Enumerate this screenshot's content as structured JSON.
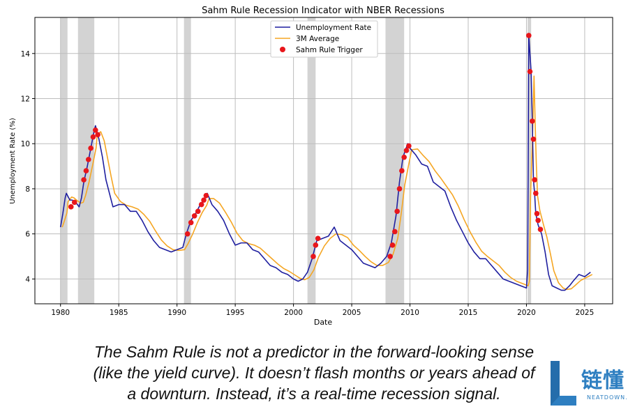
{
  "chart_data": {
    "type": "line",
    "title": "Sahm Rule Recession Indicator with NBER Recessions",
    "xlabel": "Date",
    "ylabel": "Unemployment Rate (%)",
    "xlim": [
      1977.8,
      2027.4
    ],
    "ylim": [
      2.9,
      15.6
    ],
    "x_ticks": [
      1980,
      1985,
      1990,
      1995,
      2000,
      2005,
      2010,
      2015,
      2020,
      2025
    ],
    "y_ticks": [
      4,
      6,
      8,
      10,
      12,
      14
    ],
    "grid": true,
    "legend_position": "top-center",
    "recessions": [
      [
        1980.0,
        1980.6
      ],
      [
        1981.5,
        1982.9
      ],
      [
        1990.6,
        1991.2
      ],
      [
        2001.2,
        2001.9
      ],
      [
        2007.9,
        2009.5
      ],
      [
        2020.1,
        2020.4
      ]
    ],
    "series": [
      {
        "name": "Unemployment Rate",
        "color": "#1f1f9f",
        "points": [
          [
            1980.0,
            6.3
          ],
          [
            1980.2,
            6.9
          ],
          [
            1980.4,
            7.6
          ],
          [
            1980.5,
            7.8
          ],
          [
            1980.8,
            7.5
          ],
          [
            1981.0,
            7.5
          ],
          [
            1981.3,
            7.4
          ],
          [
            1981.6,
            7.2
          ],
          [
            1981.8,
            7.6
          ],
          [
            1982.0,
            8.3
          ],
          [
            1982.3,
            9.0
          ],
          [
            1982.6,
            9.8
          ],
          [
            1982.9,
            10.6
          ],
          [
            1983.0,
            10.8
          ],
          [
            1983.3,
            10.2
          ],
          [
            1983.6,
            9.4
          ],
          [
            1983.9,
            8.4
          ],
          [
            1984.2,
            7.8
          ],
          [
            1984.5,
            7.2
          ],
          [
            1985.0,
            7.3
          ],
          [
            1985.5,
            7.3
          ],
          [
            1986.0,
            7.0
          ],
          [
            1986.5,
            7.0
          ],
          [
            1987.0,
            6.6
          ],
          [
            1987.5,
            6.1
          ],
          [
            1988.0,
            5.7
          ],
          [
            1988.5,
            5.4
          ],
          [
            1989.0,
            5.3
          ],
          [
            1989.5,
            5.2
          ],
          [
            1990.0,
            5.3
          ],
          [
            1990.5,
            5.4
          ],
          [
            1990.8,
            6.0
          ],
          [
            1991.2,
            6.6
          ],
          [
            1991.6,
            6.9
          ],
          [
            1992.0,
            7.3
          ],
          [
            1992.4,
            7.6
          ],
          [
            1992.6,
            7.8
          ],
          [
            1993.0,
            7.3
          ],
          [
            1993.5,
            7.0
          ],
          [
            1994.0,
            6.6
          ],
          [
            1994.5,
            6.0
          ],
          [
            1995.0,
            5.5
          ],
          [
            1995.5,
            5.6
          ],
          [
            1996.0,
            5.6
          ],
          [
            1996.5,
            5.3
          ],
          [
            1997.0,
            5.2
          ],
          [
            1997.5,
            4.9
          ],
          [
            1998.0,
            4.6
          ],
          [
            1998.5,
            4.5
          ],
          [
            1999.0,
            4.3
          ],
          [
            1999.5,
            4.2
          ],
          [
            2000.0,
            4.0
          ],
          [
            2000.4,
            3.9
          ],
          [
            2000.8,
            4.0
          ],
          [
            2001.2,
            4.3
          ],
          [
            2001.6,
            4.9
          ],
          [
            2002.0,
            5.7
          ],
          [
            2002.5,
            5.8
          ],
          [
            2003.0,
            5.9
          ],
          [
            2003.5,
            6.3
          ],
          [
            2004.0,
            5.7
          ],
          [
            2004.5,
            5.5
          ],
          [
            2005.0,
            5.3
          ],
          [
            2005.5,
            5.0
          ],
          [
            2006.0,
            4.7
          ],
          [
            2006.5,
            4.6
          ],
          [
            2007.0,
            4.5
          ],
          [
            2007.5,
            4.7
          ],
          [
            2008.0,
            5.0
          ],
          [
            2008.4,
            5.6
          ],
          [
            2008.8,
            6.8
          ],
          [
            2009.1,
            8.3
          ],
          [
            2009.4,
            9.4
          ],
          [
            2009.8,
            10.0
          ],
          [
            2010.0,
            9.8
          ],
          [
            2010.5,
            9.5
          ],
          [
            2011.0,
            9.1
          ],
          [
            2011.5,
            9.0
          ],
          [
            2012.0,
            8.3
          ],
          [
            2012.5,
            8.1
          ],
          [
            2013.0,
            7.9
          ],
          [
            2013.5,
            7.2
          ],
          [
            2014.0,
            6.6
          ],
          [
            2014.5,
            6.1
          ],
          [
            2015.0,
            5.6
          ],
          [
            2015.5,
            5.2
          ],
          [
            2016.0,
            4.9
          ],
          [
            2016.5,
            4.9
          ],
          [
            2017.0,
            4.6
          ],
          [
            2017.5,
            4.3
          ],
          [
            2018.0,
            4.0
          ],
          [
            2018.5,
            3.9
          ],
          [
            2019.0,
            3.8
          ],
          [
            2019.5,
            3.7
          ],
          [
            2020.0,
            3.6
          ],
          [
            2020.1,
            4.4
          ],
          [
            2020.2,
            14.8
          ],
          [
            2020.4,
            13.2
          ],
          [
            2020.5,
            11.0
          ],
          [
            2020.6,
            8.4
          ],
          [
            2020.7,
            7.8
          ],
          [
            2020.8,
            6.9
          ],
          [
            2021.0,
            6.4
          ],
          [
            2021.3,
            6.0
          ],
          [
            2021.6,
            5.2
          ],
          [
            2021.9,
            4.2
          ],
          [
            2022.2,
            3.7
          ],
          [
            2022.6,
            3.6
          ],
          [
            2023.0,
            3.5
          ],
          [
            2023.3,
            3.5
          ],
          [
            2023.7,
            3.7
          ],
          [
            2024.0,
            3.9
          ],
          [
            2024.5,
            4.2
          ],
          [
            2025.0,
            4.1
          ],
          [
            2025.5,
            4.3
          ]
        ]
      },
      {
        "name": "3M Average",
        "color": "#f5a623"
      },
      {
        "name": "Sahm Rule Trigger",
        "color": "#e8161b",
        "points": [
          [
            1980.9,
            7.2
          ],
          [
            1981.2,
            7.4
          ],
          [
            1982.0,
            8.4
          ],
          [
            1982.2,
            8.8
          ],
          [
            1982.4,
            9.3
          ],
          [
            1982.6,
            9.8
          ],
          [
            1982.8,
            10.3
          ],
          [
            1983.0,
            10.6
          ],
          [
            1983.2,
            10.4
          ],
          [
            1990.9,
            6.0
          ],
          [
            1991.2,
            6.5
          ],
          [
            1991.5,
            6.8
          ],
          [
            1991.8,
            7.0
          ],
          [
            1992.1,
            7.3
          ],
          [
            1992.3,
            7.5
          ],
          [
            1992.5,
            7.7
          ],
          [
            2001.7,
            5.0
          ],
          [
            2001.9,
            5.5
          ],
          [
            2002.1,
            5.8
          ],
          [
            2008.3,
            5.0
          ],
          [
            2008.5,
            5.5
          ],
          [
            2008.7,
            6.1
          ],
          [
            2008.9,
            7.0
          ],
          [
            2009.1,
            8.0
          ],
          [
            2009.3,
            8.8
          ],
          [
            2009.5,
            9.4
          ],
          [
            2009.7,
            9.7
          ],
          [
            2009.9,
            9.9
          ],
          [
            2020.2,
            14.8
          ],
          [
            2020.3,
            13.2
          ],
          [
            2020.5,
            11.0
          ],
          [
            2020.6,
            10.2
          ],
          [
            2020.7,
            8.4
          ],
          [
            2020.8,
            7.8
          ],
          [
            2020.9,
            6.9
          ],
          [
            2021.0,
            6.6
          ],
          [
            2021.2,
            6.2
          ]
        ]
      }
    ]
  },
  "caption": {
    "line1": "The Sahm Rule is not a predictor in the forward-looking sense",
    "line2": "(like the yield curve). It doesn’t flash months or years ahead of",
    "line3": "a downturn. Instead, it’s a real-time recession signal."
  },
  "logo": {
    "text": "链懂",
    "sub": "NEATDOWN.COM",
    "color": "#2e7fc1"
  }
}
